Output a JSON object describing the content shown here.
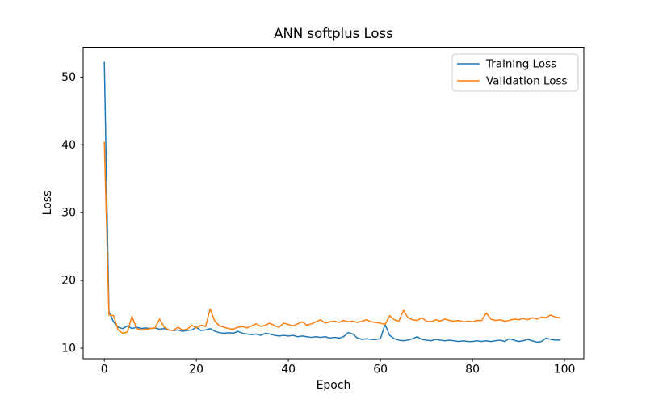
{
  "chart_data": {
    "type": "line",
    "title": "ANN softplus Loss",
    "xlabel": "Epoch",
    "ylabel": "Loss",
    "x": [
      0,
      1,
      2,
      3,
      4,
      5,
      6,
      7,
      8,
      9,
      10,
      11,
      12,
      13,
      14,
      15,
      16,
      17,
      18,
      19,
      20,
      21,
      22,
      23,
      24,
      25,
      26,
      27,
      28,
      29,
      30,
      31,
      32,
      33,
      34,
      35,
      36,
      37,
      38,
      39,
      40,
      41,
      42,
      43,
      44,
      45,
      46,
      47,
      48,
      49,
      50,
      51,
      52,
      53,
      54,
      55,
      56,
      57,
      58,
      59,
      60,
      61,
      62,
      63,
      64,
      65,
      66,
      67,
      68,
      69,
      70,
      71,
      72,
      73,
      74,
      75,
      76,
      77,
      78,
      79,
      80,
      81,
      82,
      83,
      84,
      85,
      86,
      87,
      88,
      89,
      90,
      91,
      92,
      93,
      94,
      95,
      96,
      97,
      98,
      99
    ],
    "series": [
      {
        "name": "Training Loss",
        "color": "#1f77b4",
        "values": [
          52.2,
          15.4,
          13.9,
          13.1,
          12.9,
          13.3,
          12.9,
          13.1,
          12.9,
          13.0,
          12.9,
          13.0,
          12.8,
          12.9,
          12.7,
          12.6,
          12.7,
          12.5,
          12.6,
          12.7,
          13.1,
          12.6,
          12.7,
          12.9,
          12.5,
          12.3,
          12.2,
          12.3,
          12.2,
          12.5,
          12.2,
          12.1,
          12.0,
          12.1,
          11.9,
          12.2,
          12.1,
          11.9,
          11.8,
          11.9,
          11.8,
          11.9,
          11.7,
          11.8,
          11.7,
          11.6,
          11.7,
          11.6,
          11.7,
          11.5,
          11.6,
          11.5,
          11.7,
          12.3,
          12.1,
          11.5,
          11.3,
          11.4,
          11.3,
          11.3,
          11.4,
          13.5,
          11.9,
          11.4,
          11.2,
          11.1,
          11.2,
          11.4,
          11.7,
          11.3,
          11.2,
          11.1,
          11.3,
          11.2,
          11.1,
          11.2,
          11.1,
          11.0,
          11.1,
          11.0,
          11.0,
          11.1,
          11.0,
          11.1,
          11.0,
          11.1,
          11.2,
          11.0,
          11.4,
          11.2,
          11.0,
          11.1,
          11.3,
          11.1,
          10.9,
          11.0,
          11.5,
          11.3,
          11.2,
          11.2
        ]
      },
      {
        "name": "Validation Loss",
        "color": "#ff7f0e",
        "values": [
          40.4,
          14.9,
          14.8,
          12.7,
          12.2,
          12.4,
          14.7,
          12.9,
          12.7,
          12.8,
          12.9,
          13.0,
          14.3,
          13.1,
          12.7,
          12.6,
          13.1,
          12.7,
          12.8,
          13.4,
          13.0,
          13.4,
          13.2,
          15.8,
          14.0,
          13.3,
          13.1,
          12.9,
          12.8,
          13.1,
          13.2,
          13.0,
          13.3,
          13.6,
          13.2,
          13.4,
          13.7,
          13.3,
          13.1,
          13.7,
          13.5,
          13.3,
          13.6,
          13.9,
          13.4,
          13.6,
          13.9,
          14.2,
          13.7,
          13.9,
          14.0,
          13.8,
          14.1,
          13.9,
          14.0,
          13.8,
          14.0,
          14.2,
          13.9,
          13.8,
          13.7,
          13.5,
          14.8,
          14.2,
          14.0,
          15.6,
          14.5,
          14.2,
          14.1,
          14.5,
          14.0,
          13.9,
          14.2,
          14.0,
          14.3,
          14.1,
          14.0,
          14.1,
          13.9,
          14.0,
          13.9,
          14.1,
          14.1,
          15.2,
          14.3,
          14.1,
          14.2,
          14.0,
          14.1,
          14.3,
          14.2,
          14.4,
          14.2,
          14.5,
          14.3,
          14.6,
          14.5,
          14.9,
          14.6,
          14.5
        ]
      }
    ],
    "xlim": [
      -4.6,
      104.2
    ],
    "ylim": [
      8.45,
      54.4
    ],
    "xticks": [
      0,
      20,
      40,
      60,
      80,
      100
    ],
    "yticks": [
      10,
      20,
      30,
      40,
      50
    ],
    "grid": false,
    "legend_position": "upper right",
    "axis_color": "#000000",
    "background_color": "#ffffff"
  }
}
